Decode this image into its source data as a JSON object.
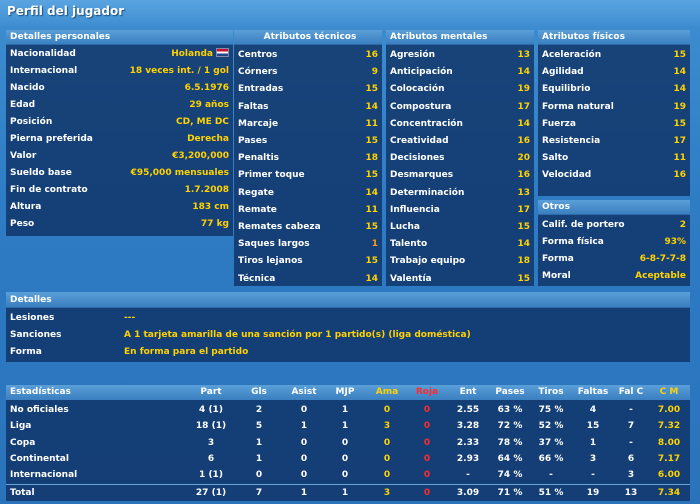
{
  "title": "Perfil del jugador",
  "personal": {
    "header": "Detalles personales",
    "rows": [
      {
        "label": "Nacionalidad",
        "value": "Holanda"
      },
      {
        "label": "Internacional",
        "value": "18 veces int. / 1 gol"
      },
      {
        "label": "Nacido",
        "value": "6.5.1976"
      },
      {
        "label": "Edad",
        "value": "29 años"
      },
      {
        "label": "Posición",
        "value": "CD, ME DC"
      },
      {
        "label": "Pierna preferida",
        "value": "Derecha"
      },
      {
        "label": "Valor",
        "value": "€3,200,000"
      },
      {
        "label": "Sueldo base",
        "value": "€95,000 mensuales"
      },
      {
        "label": "Fin de contrato",
        "value": "1.7.2008"
      },
      {
        "label": "Altura",
        "value": "183 cm"
      },
      {
        "label": "Peso",
        "value": "77 kg"
      }
    ]
  },
  "technical": {
    "header": "Atributos técnicos",
    "rows": [
      {
        "label": "Centros",
        "value": "16"
      },
      {
        "label": "Córners",
        "value": "9"
      },
      {
        "label": "Entradas",
        "value": "15"
      },
      {
        "label": "Faltas",
        "value": "14"
      },
      {
        "label": "Marcaje",
        "value": "11"
      },
      {
        "label": "Pases",
        "value": "15"
      },
      {
        "label": "Penaltis",
        "value": "18"
      },
      {
        "label": "Primer toque",
        "value": "15"
      },
      {
        "label": "Regate",
        "value": "14"
      },
      {
        "label": "Remate",
        "value": "11"
      },
      {
        "label": "Remates cabeza",
        "value": "15"
      },
      {
        "label": "Saques largos",
        "value": "1"
      },
      {
        "label": "Tiros lejanos",
        "value": "15"
      },
      {
        "label": "Técnica",
        "value": "14"
      }
    ]
  },
  "mental": {
    "header": "Atributos mentales",
    "rows": [
      {
        "label": "Agresión",
        "value": "13"
      },
      {
        "label": "Anticipación",
        "value": "14"
      },
      {
        "label": "Colocación",
        "value": "19"
      },
      {
        "label": "Compostura",
        "value": "17"
      },
      {
        "label": "Concentración",
        "value": "14"
      },
      {
        "label": "Creatividad",
        "value": "16"
      },
      {
        "label": "Decisiones",
        "value": "20"
      },
      {
        "label": "Desmarques",
        "value": "16"
      },
      {
        "label": "Determinación",
        "value": "13"
      },
      {
        "label": "Influencia",
        "value": "17"
      },
      {
        "label": "Lucha",
        "value": "15"
      },
      {
        "label": "Talento",
        "value": "14"
      },
      {
        "label": "Trabajo equipo",
        "value": "18"
      },
      {
        "label": "Valentía",
        "value": "15"
      }
    ]
  },
  "physical": {
    "header": "Atributos físicos",
    "rows": [
      {
        "label": "Aceleración",
        "value": "15"
      },
      {
        "label": "Agilidad",
        "value": "14"
      },
      {
        "label": "Equilibrio",
        "value": "14"
      },
      {
        "label": "Forma natural",
        "value": "19"
      },
      {
        "label": "Fuerza",
        "value": "15"
      },
      {
        "label": "Resistencia",
        "value": "17"
      },
      {
        "label": "Salto",
        "value": "11"
      },
      {
        "label": "Velocidad",
        "value": "16"
      }
    ]
  },
  "others": {
    "header": "Otros",
    "rows": [
      {
        "label": "Calif. de portero",
        "value": "2"
      },
      {
        "label": "Forma física",
        "value": "93%"
      },
      {
        "label": "Forma",
        "value": "6-8-7-7-8"
      },
      {
        "label": "Moral",
        "value": "Aceptable"
      }
    ]
  },
  "details": {
    "header": "Detalles",
    "rows": [
      {
        "label": "Lesiones",
        "value": "---"
      },
      {
        "label": "Sanciones",
        "value": "A 1 tarjeta amarilla de una sanción por 1 partido(s) (liga doméstica)"
      },
      {
        "label": "Forma",
        "value": "En forma para el partido"
      }
    ]
  },
  "stats": {
    "columns": [
      "Estadísticas",
      "Part",
      "Gls",
      "Asist",
      "MJP",
      "Ama",
      "Roja",
      "Ent",
      "Pases",
      "Tiros",
      "Faltas",
      "Fal C",
      "C M"
    ],
    "rows": [
      [
        "No oficiales",
        "4 (1)",
        "2",
        "0",
        "1",
        "0",
        "0",
        "2.55",
        "63 %",
        "75 %",
        "4",
        "-",
        "7.00"
      ],
      [
        "Liga",
        "18 (1)",
        "5",
        "1",
        "1",
        "3",
        "0",
        "3.28",
        "72 %",
        "52 %",
        "15",
        "7",
        "7.32"
      ],
      [
        "Copa",
        "3",
        "1",
        "0",
        "0",
        "0",
        "0",
        "2.33",
        "78 %",
        "37 %",
        "1",
        "-",
        "8.00"
      ],
      [
        "Continental",
        "6",
        "1",
        "0",
        "0",
        "0",
        "0",
        "2.93",
        "64 %",
        "66 %",
        "3",
        "6",
        "7.17"
      ],
      [
        "Internacional",
        "1 (1)",
        "0",
        "0",
        "0",
        "0",
        "0",
        "-",
        "74 %",
        "-",
        "-",
        "3",
        "6.00"
      ],
      [
        "Total",
        "27 (1)",
        "7",
        "1",
        "1",
        "3",
        "0",
        "3.09",
        "71 %",
        "51 %",
        "19",
        "13",
        "7.34"
      ]
    ]
  },
  "colors": {
    "value_yellow": "#ffd200",
    "value_orange": "#ff9a1a",
    "red_card": "#ff2a2a",
    "panel_bg": "#0e3062",
    "header_blue": "#3a7fc0"
  }
}
